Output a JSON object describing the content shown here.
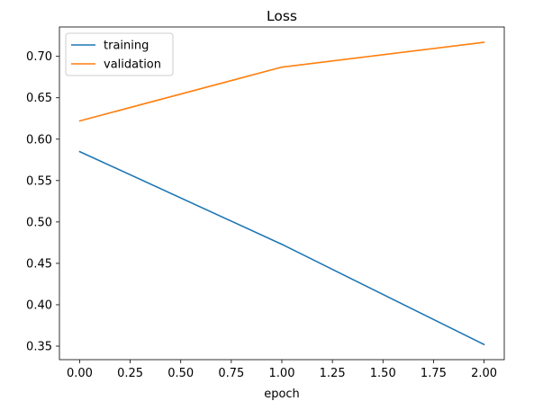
{
  "chart_data": {
    "type": "line",
    "title": "Loss",
    "xlabel": "epoch",
    "ylabel": "",
    "x": [
      0,
      1,
      2
    ],
    "xlim": [
      -0.1,
      2.1
    ],
    "ylim": [
      0.3337,
      0.7355
    ],
    "xticks": [
      0.0,
      0.25,
      0.5,
      0.75,
      1.0,
      1.25,
      1.5,
      1.75,
      2.0
    ],
    "xtick_labels": [
      "0.00",
      "0.25",
      "0.50",
      "0.75",
      "1.00",
      "1.25",
      "1.50",
      "1.75",
      "2.00"
    ],
    "yticks": [
      0.35,
      0.4,
      0.45,
      0.5,
      0.55,
      0.6,
      0.65,
      0.7
    ],
    "ytick_labels": [
      "0.35",
      "0.40",
      "0.45",
      "0.50",
      "0.55",
      "0.60",
      "0.65",
      "0.70"
    ],
    "grid": false,
    "legend_position": "top-left",
    "series": [
      {
        "name": "training",
        "color": "#1f77b4",
        "values": [
          0.585,
          0.473,
          0.352
        ]
      },
      {
        "name": "validation",
        "color": "#ff7f0e",
        "values": [
          0.622,
          0.687,
          0.717
        ]
      }
    ]
  }
}
